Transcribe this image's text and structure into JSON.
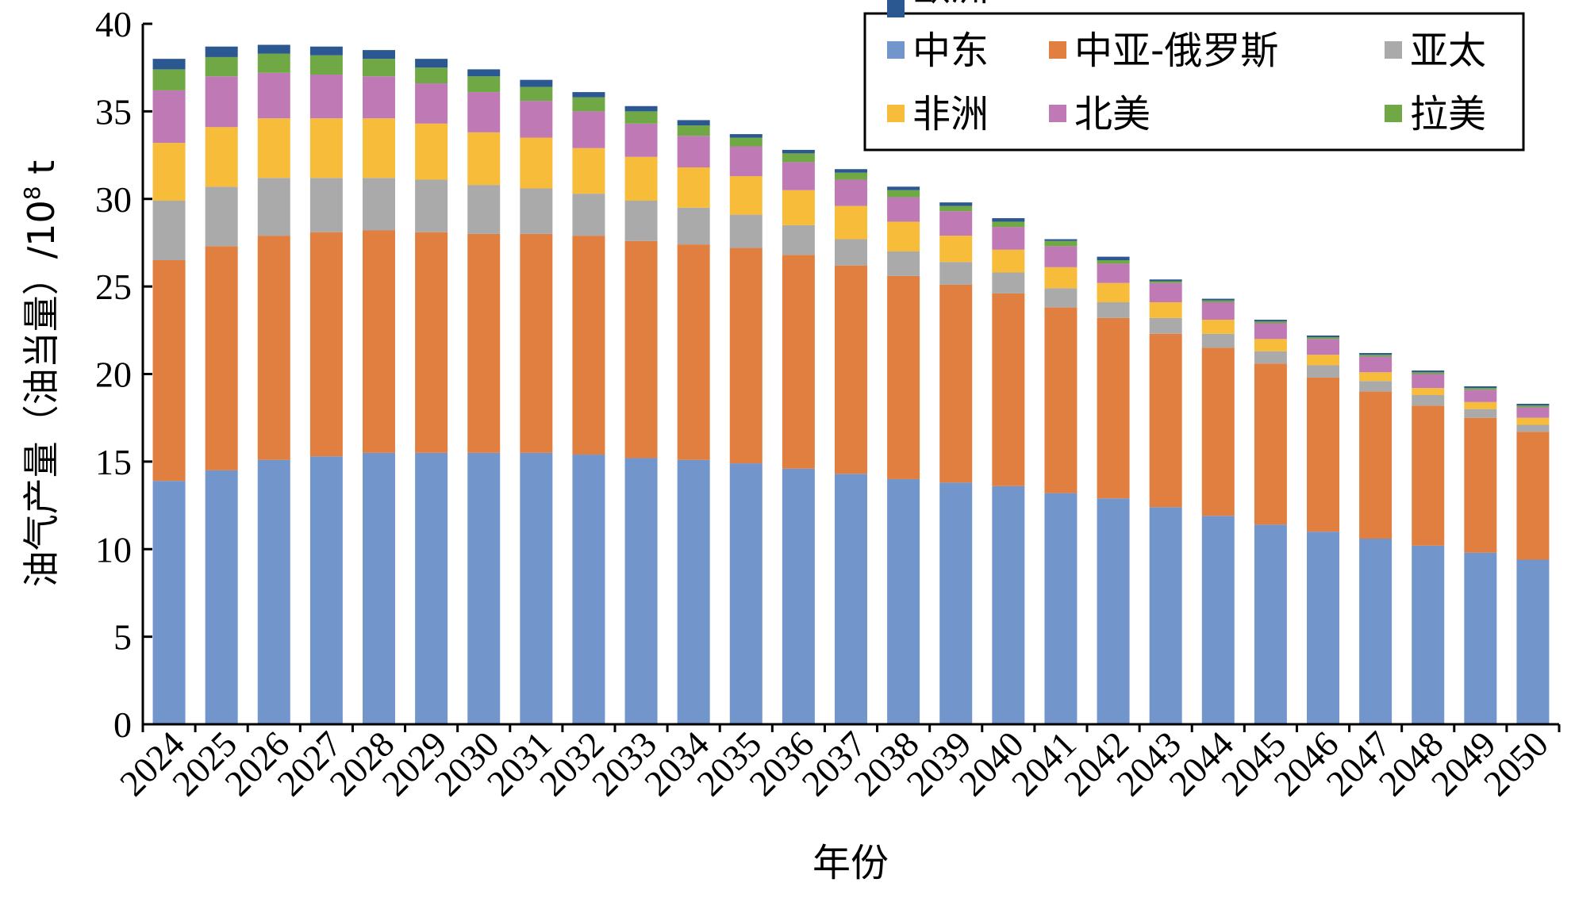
{
  "chart_data": {
    "type": "bar",
    "stacked": true,
    "title": "",
    "xlabel": "年份",
    "ylabel": "油气产量（油当量）/10⁸ t",
    "ylabel_parts": {
      "main": "油气产量（油当量）/10",
      "sup": "8",
      "unit": " t"
    },
    "ylim": [
      0,
      40
    ],
    "yticks": [
      0,
      5,
      10,
      15,
      20,
      25,
      30,
      35,
      40
    ],
    "grid": false,
    "legend_position": "top-right",
    "categories": [
      "2024",
      "2025",
      "2026",
      "2027",
      "2028",
      "2029",
      "2030",
      "2031",
      "2032",
      "2033",
      "2034",
      "2035",
      "2036",
      "2037",
      "2038",
      "2039",
      "2040",
      "2041",
      "2042",
      "2043",
      "2044",
      "2045",
      "2046",
      "2047",
      "2048",
      "2049",
      "2050"
    ],
    "series": [
      {
        "name": "中东",
        "color": "#7295cc",
        "values": [
          13.9,
          14.5,
          15.1,
          15.3,
          15.5,
          15.5,
          15.5,
          15.5,
          15.4,
          15.2,
          15.1,
          14.9,
          14.6,
          14.3,
          14.0,
          13.8,
          13.6,
          13.2,
          12.9,
          12.4,
          11.9,
          11.4,
          11.0,
          10.6,
          10.2,
          9.8,
          9.4
        ]
      },
      {
        "name": "中亚-俄罗斯",
        "color": "#e07f3f",
        "values": [
          12.6,
          12.8,
          12.8,
          12.8,
          12.7,
          12.6,
          12.5,
          12.5,
          12.5,
          12.4,
          12.3,
          12.3,
          12.2,
          11.9,
          11.6,
          11.3,
          11.0,
          10.6,
          10.3,
          9.9,
          9.6,
          9.2,
          8.8,
          8.4,
          8.0,
          7.7,
          7.3
        ]
      },
      {
        "name": "亚太",
        "color": "#aaaaaa",
        "values": [
          3.4,
          3.4,
          3.3,
          3.1,
          3.0,
          3.0,
          2.8,
          2.6,
          2.4,
          2.3,
          2.1,
          1.9,
          1.7,
          1.5,
          1.4,
          1.3,
          1.2,
          1.1,
          0.9,
          0.9,
          0.8,
          0.7,
          0.7,
          0.6,
          0.6,
          0.5,
          0.4
        ]
      },
      {
        "name": "非洲",
        "color": "#f6bc3a",
        "values": [
          3.3,
          3.4,
          3.4,
          3.4,
          3.4,
          3.2,
          3.0,
          2.9,
          2.6,
          2.5,
          2.3,
          2.2,
          2.0,
          1.9,
          1.7,
          1.5,
          1.3,
          1.2,
          1.1,
          0.9,
          0.8,
          0.7,
          0.6,
          0.5,
          0.4,
          0.4,
          0.4
        ]
      },
      {
        "name": "北美",
        "color": "#bf79b4",
        "values": [
          3.0,
          2.9,
          2.6,
          2.5,
          2.4,
          2.3,
          2.3,
          2.1,
          2.1,
          1.9,
          1.8,
          1.7,
          1.6,
          1.5,
          1.4,
          1.4,
          1.3,
          1.2,
          1.1,
          1.1,
          1.0,
          0.9,
          0.9,
          0.9,
          0.8,
          0.7,
          0.6
        ]
      },
      {
        "name": "拉美",
        "color": "#70a845",
        "values": [
          1.2,
          1.1,
          1.1,
          1.1,
          1.0,
          0.9,
          0.9,
          0.8,
          0.8,
          0.7,
          0.6,
          0.5,
          0.5,
          0.4,
          0.4,
          0.3,
          0.3,
          0.3,
          0.2,
          0.1,
          0.1,
          0.1,
          0.1,
          0.1,
          0.1,
          0.1,
          0.1
        ]
      },
      {
        "name": "欧洲",
        "color": "#2c5891",
        "values": [
          0.6,
          0.6,
          0.5,
          0.5,
          0.5,
          0.5,
          0.4,
          0.4,
          0.3,
          0.3,
          0.3,
          0.2,
          0.2,
          0.2,
          0.2,
          0.2,
          0.2,
          0.1,
          0.2,
          0.1,
          0.1,
          0.1,
          0.1,
          0.1,
          0.1,
          0.1,
          0.1
        ]
      }
    ]
  }
}
